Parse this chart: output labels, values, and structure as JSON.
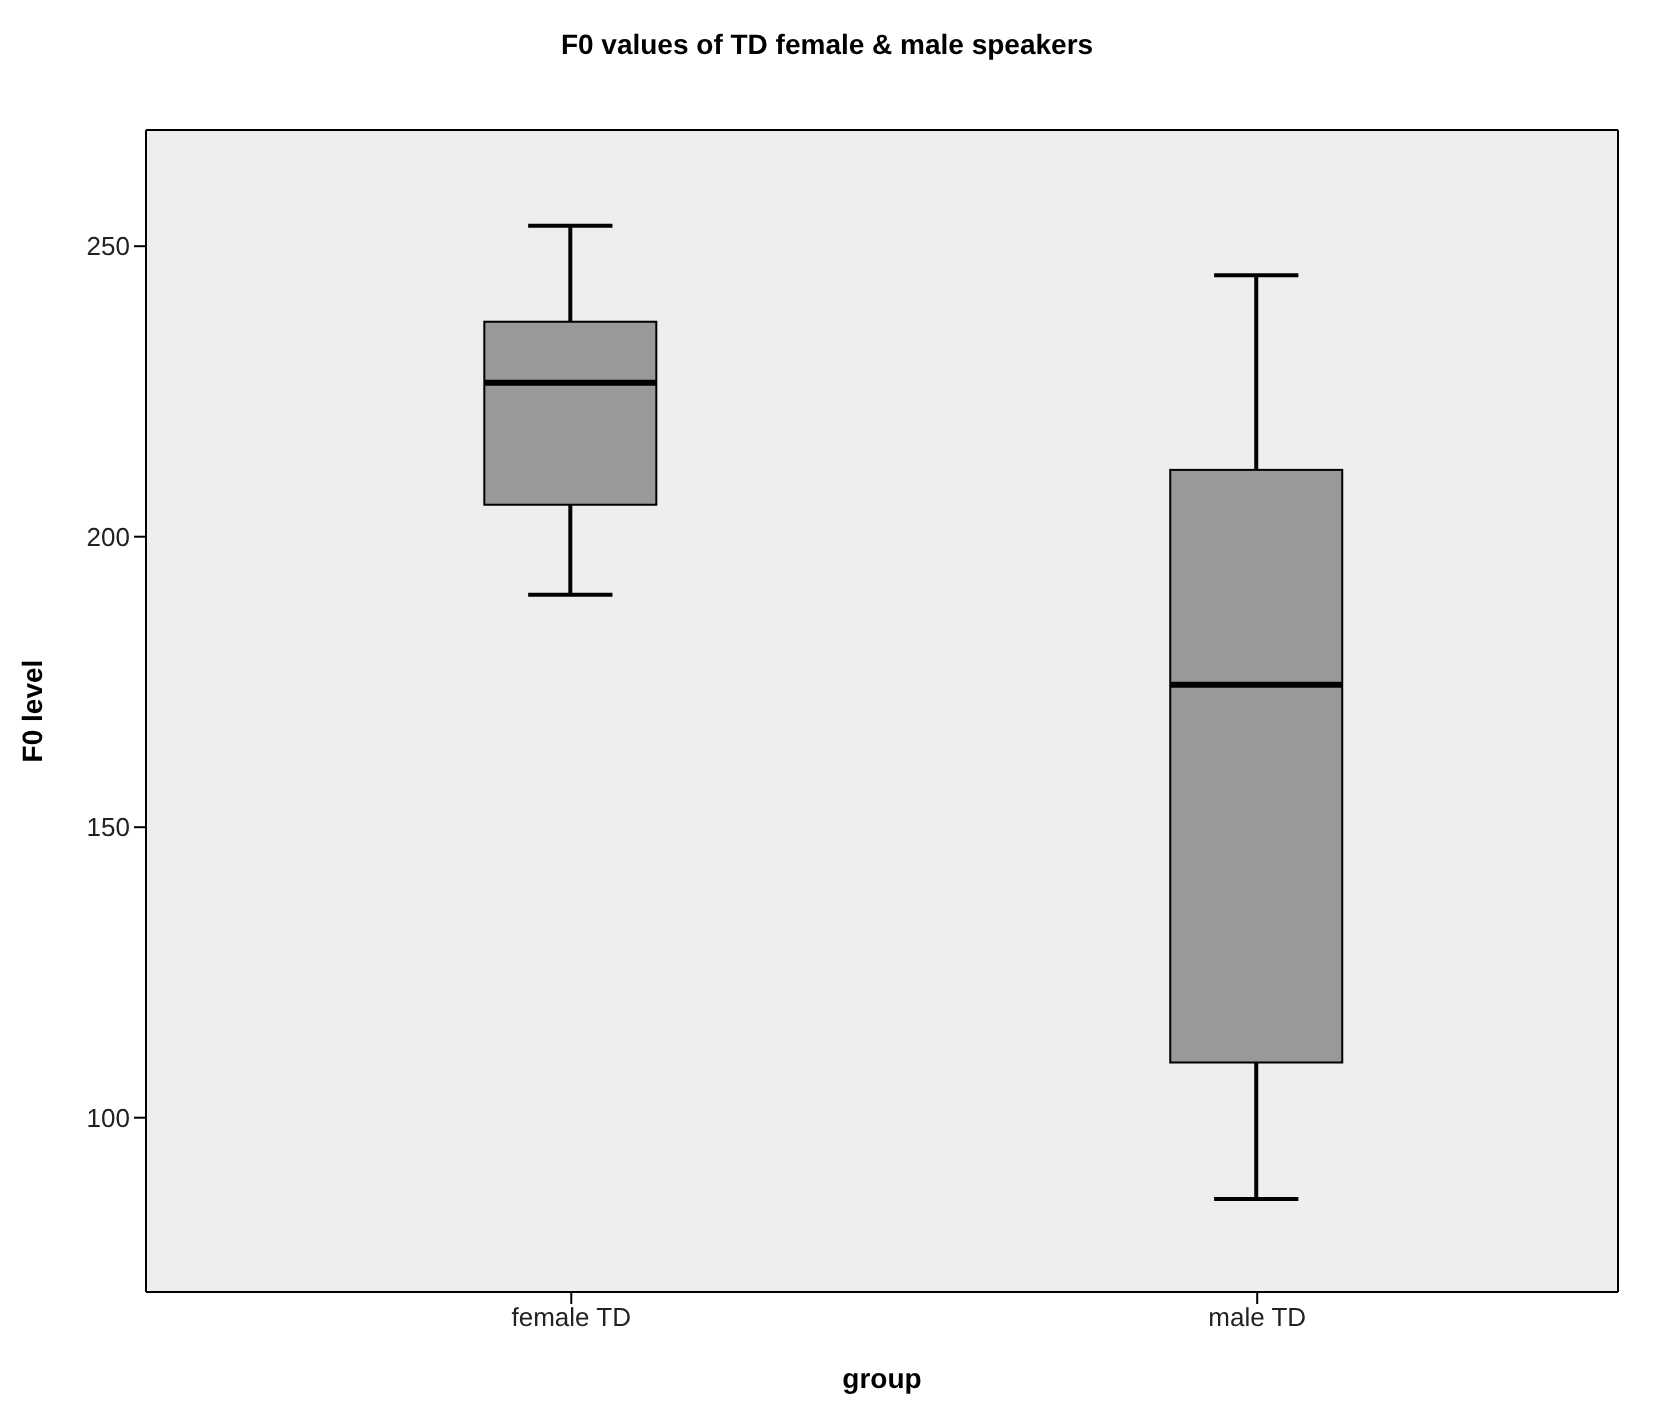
{
  "chart_data": {
    "type": "box",
    "title": "F0 values of TD female & male speakers",
    "xlabel": "group",
    "ylabel": "F0 level",
    "categories": [
      "female TD",
      "male TD"
    ],
    "boxes": [
      {
        "low": 190,
        "q1": 205.5,
        "median": 226.5,
        "q3": 237,
        "high": 253.5
      },
      {
        "low": 86,
        "q1": 109.5,
        "median": 174.5,
        "q3": 211.5,
        "high": 245
      }
    ],
    "color": "#999999",
    "ylim": [
      70,
      270
    ],
    "yticks": [
      100,
      150,
      200,
      250
    ],
    "grid": false,
    "legend": false
  }
}
